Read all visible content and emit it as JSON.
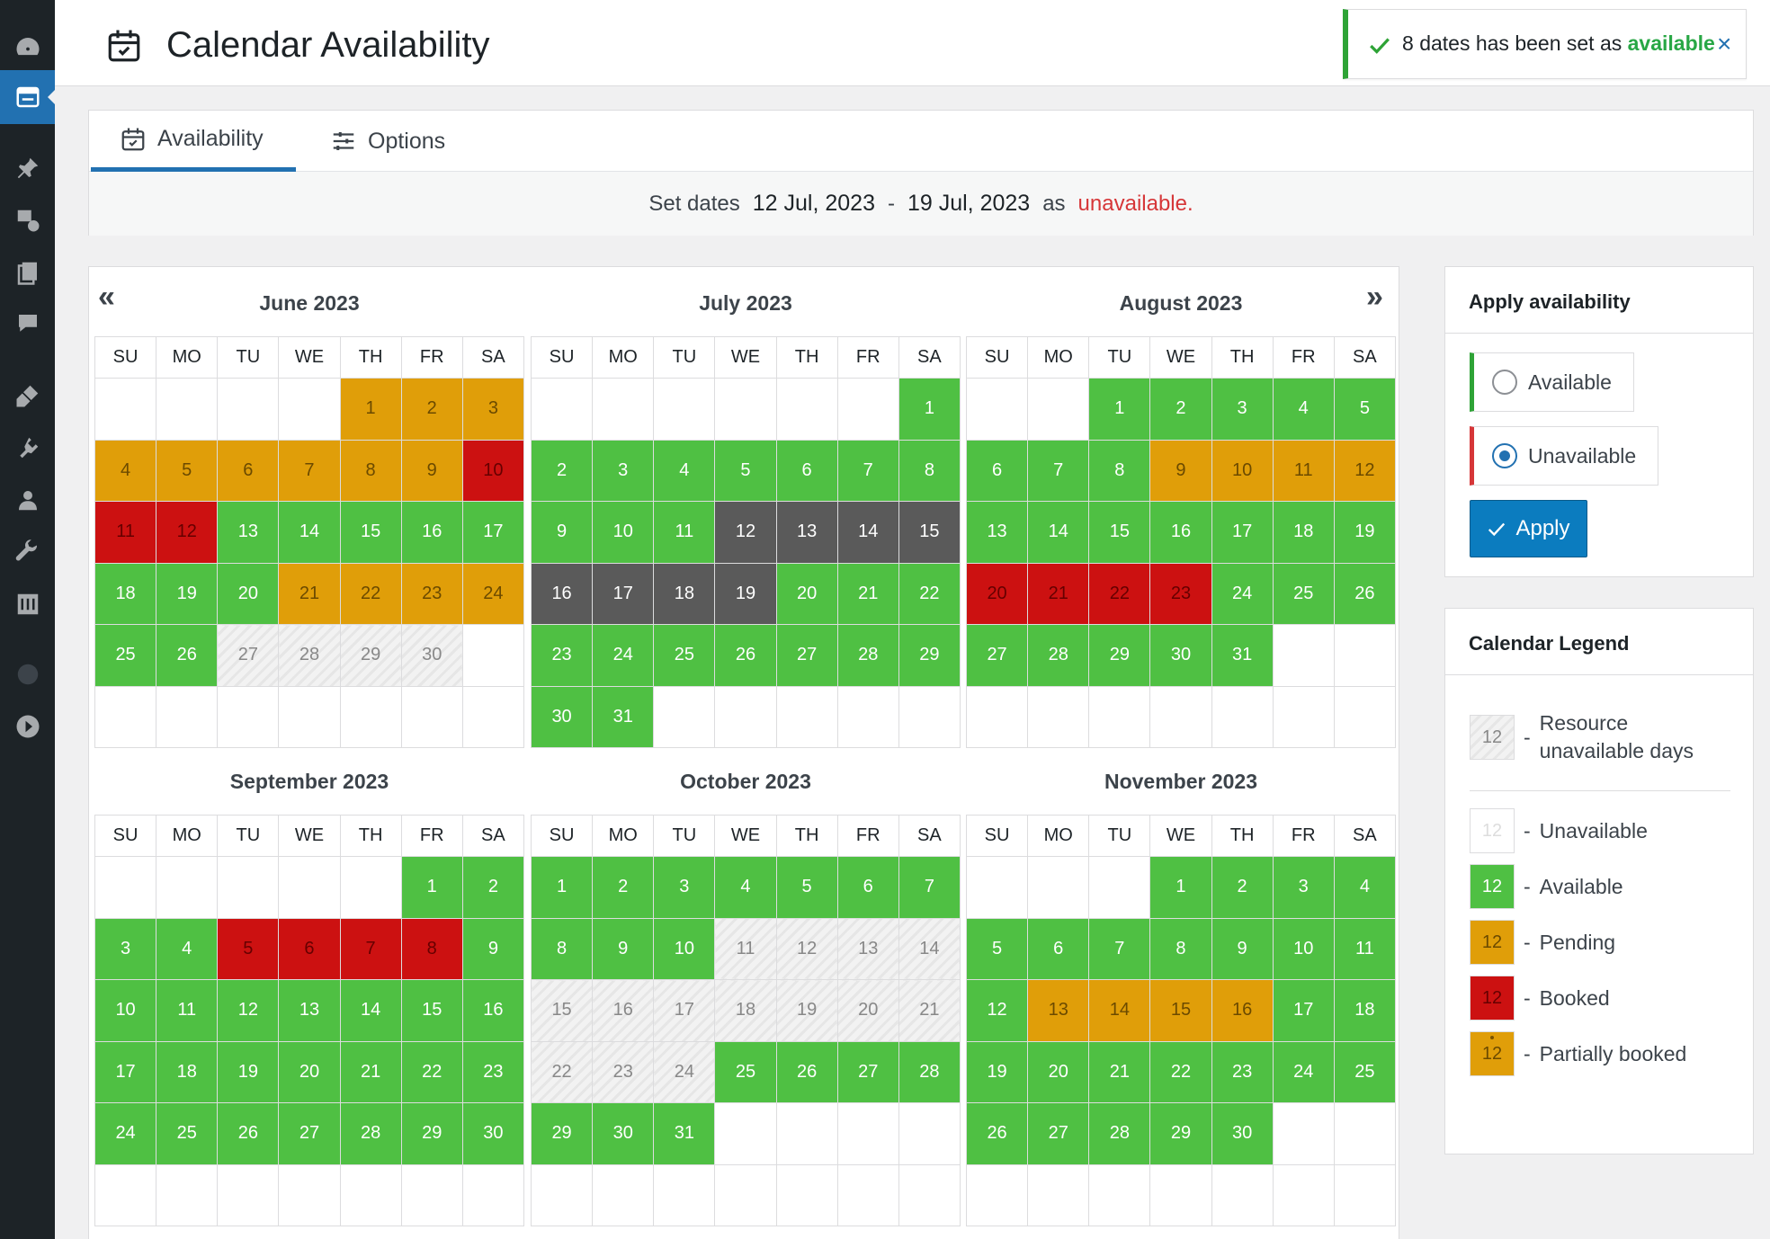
{
  "header": {
    "title": "Calendar Availability"
  },
  "notice": {
    "count": "8",
    "text": "dates has been set as",
    "status": "available",
    "close": "×"
  },
  "tabs": [
    {
      "label": "Availability"
    },
    {
      "label": "Options"
    }
  ],
  "set_dates": {
    "prefix": "Set dates",
    "start": "12 Jul, 2023",
    "dash": "-",
    "end": "19 Jul, 2023",
    "as": "as",
    "status": "unavailable."
  },
  "calendar": {
    "weekdays": [
      "SU",
      "MO",
      "TU",
      "WE",
      "TH",
      "FR",
      "SA"
    ],
    "nav_prev": "«",
    "nav_next": "»",
    "months": [
      {
        "title": "June 2023",
        "first_weekday": 4,
        "days": 30,
        "states": {
          "1": "pe",
          "2": "pe",
          "3": "pe",
          "4": "pe",
          "5": "pe",
          "6": "pe",
          "7": "pe",
          "8": "pe",
          "9": "pe",
          "10": "bo",
          "11": "bo",
          "12": "bo",
          "21": "pe",
          "22": "pe",
          "23": "pe",
          "24": "pe",
          "27": "res",
          "28": "res",
          "29": "res",
          "30": "res"
        }
      },
      {
        "title": "July 2023",
        "first_weekday": 6,
        "days": 31,
        "states": {
          "12": "sel",
          "13": "sel",
          "14": "sel",
          "15": "sel",
          "16": "sel",
          "17": "sel",
          "18": "sel",
          "19": "sel"
        }
      },
      {
        "title": "August 2023",
        "first_weekday": 2,
        "days": 31,
        "states": {
          "9": "pe",
          "10": "pe",
          "11": "pe",
          "12": "pe",
          "20": "bo",
          "21": "bo",
          "22": "bo",
          "23": "bo"
        }
      },
      {
        "title": "September 2023",
        "first_weekday": 5,
        "days": 30,
        "states": {
          "5": "bo",
          "6": "bo",
          "7": "bo",
          "8": "bo"
        }
      },
      {
        "title": "October 2023",
        "first_weekday": 0,
        "days": 31,
        "states": {
          "11": "res",
          "12": "res",
          "13": "res",
          "14": "res",
          "15": "res",
          "16": "res",
          "17": "res",
          "18": "res",
          "19": "res",
          "20": "res",
          "21": "res",
          "22": "res",
          "23": "res",
          "24": "res"
        }
      },
      {
        "title": "November 2023",
        "first_weekday": 3,
        "days": 30,
        "states": {
          "13": "pe",
          "14": "pe",
          "15": "pe",
          "16": "pe"
        }
      }
    ]
  },
  "apply_panel": {
    "title": "Apply availability",
    "options": [
      {
        "label": "Available",
        "selected": false
      },
      {
        "label": "Unavailable",
        "selected": true
      }
    ],
    "apply_label": "Apply"
  },
  "legend": {
    "title": "Calendar Legend",
    "sample_day": "12",
    "dash": "-",
    "items": [
      {
        "label": "Resource unavailable days",
        "state": "res"
      },
      {
        "label": "Unavailable",
        "state": "empty"
      },
      {
        "label": "Available",
        "state": "av"
      },
      {
        "label": "Pending",
        "state": "pe"
      },
      {
        "label": "Booked",
        "state": "bo"
      },
      {
        "label": "Partially booked",
        "state": "partial"
      }
    ]
  },
  "colors": {
    "available": "#4fc043",
    "pending": "#e09e09",
    "booked": "#cc1111",
    "selected": "#5a5a5a",
    "accent": "#2271b1",
    "unavailable_text": "#d63638"
  }
}
